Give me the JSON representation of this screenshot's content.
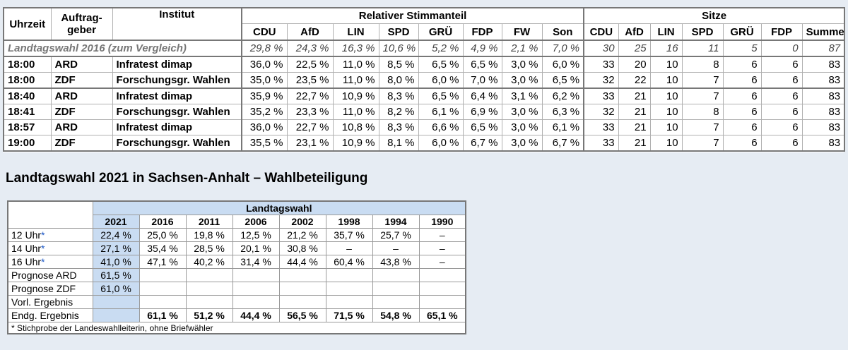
{
  "top_table": {
    "headers": {
      "uhrzeit": "Uhrzeit",
      "auftraggeber_1": "Auftrag-",
      "auftraggeber_2": "geber",
      "institut": "Institut",
      "stimmanteil": "Relativer Stimmanteil",
      "sitze": "Sitze",
      "party_cols": [
        "CDU",
        "AfD",
        "LIN",
        "SPD",
        "GRÜ",
        "FDP",
        "FW",
        "Son"
      ],
      "seat_cols": [
        "CDU",
        "AfD",
        "LIN",
        "SPD",
        "GRÜ",
        "FDP",
        "Summe"
      ]
    },
    "comparison": {
      "label": "Landtagswahl 2016 (zum Vergleich)",
      "shares": [
        "29,8 %",
        "24,3 %",
        "16,3 %",
        "10,6 %",
        "5,2 %",
        "4,9 %",
        "2,1 %",
        "7,0 %"
      ],
      "seats": [
        "30",
        "25",
        "16",
        "11",
        "5",
        "0",
        "87"
      ]
    },
    "rows": [
      {
        "time": "18:00",
        "auftrag": "ARD",
        "institut": "Infratest dimap",
        "shares": [
          "36,0 %",
          "22,5 %",
          "11,0 %",
          "8,5 %",
          "6,5 %",
          "6,5 %",
          "3,0 %",
          "6,0 %"
        ],
        "seats": [
          "33",
          "20",
          "10",
          "8",
          "6",
          "6",
          "83"
        ]
      },
      {
        "time": "18:00",
        "auftrag": "ZDF",
        "institut": "Forschungsgr. Wahlen",
        "shares": [
          "35,0 %",
          "23,5 %",
          "11,0 %",
          "8,0 %",
          "6,0 %",
          "7,0 %",
          "3,0 %",
          "6,5 %"
        ],
        "seats": [
          "32",
          "22",
          "10",
          "7",
          "6",
          "6",
          "83"
        ]
      },
      {
        "time": "18:40",
        "auftrag": "ARD",
        "institut": "Infratest dimap",
        "shares": [
          "35,9 %",
          "22,7 %",
          "10,9 %",
          "8,3 %",
          "6,5 %",
          "6,4 %",
          "3,1 %",
          "6,2 %"
        ],
        "seats": [
          "33",
          "21",
          "10",
          "7",
          "6",
          "6",
          "83"
        ]
      },
      {
        "time": "18:41",
        "auftrag": "ZDF",
        "institut": "Forschungsgr. Wahlen",
        "shares": [
          "35,2 %",
          "23,3 %",
          "11,0 %",
          "8,2 %",
          "6,1 %",
          "6,9 %",
          "3,0 %",
          "6,3 %"
        ],
        "seats": [
          "32",
          "21",
          "10",
          "8",
          "6",
          "6",
          "83"
        ]
      },
      {
        "time": "18:57",
        "auftrag": "ARD",
        "institut": "Infratest dimap",
        "shares": [
          "36,0 %",
          "22,7 %",
          "10,8 %",
          "8,3 %",
          "6,6 %",
          "6,5 %",
          "3,0 %",
          "6,1 %"
        ],
        "seats": [
          "33",
          "21",
          "10",
          "7",
          "6",
          "6",
          "83"
        ]
      },
      {
        "time": "19:00",
        "auftrag": "ZDF",
        "institut": "Forschungsgr. Wahlen",
        "shares": [
          "35,5 %",
          "23,1 %",
          "10,9 %",
          "8,1 %",
          "6,0 %",
          "6,7 %",
          "3,0 %",
          "6,7 %"
        ],
        "seats": [
          "33",
          "21",
          "10",
          "7",
          "6",
          "6",
          "83"
        ]
      }
    ]
  },
  "section_title": "Landtagswahl 2021 in Sachsen-Anhalt – Wahlbeteiligung",
  "turnout_table": {
    "group_header": "Landtagswahl",
    "years": [
      "2021",
      "2016",
      "2011",
      "2006",
      "2002",
      "1998",
      "1994",
      "1990"
    ],
    "rows": [
      {
        "label": "12 Uhr",
        "asterisk": "*",
        "values": [
          "22,4 %",
          "25,0 %",
          "19,8 %",
          "12,5 %",
          "21,2 %",
          "35,7 %",
          "25,7 %",
          "–"
        ]
      },
      {
        "label": "14 Uhr",
        "asterisk": "*",
        "values": [
          "27,1 %",
          "35,4 %",
          "28,5 %",
          "20,1 %",
          "30,8 %",
          "–",
          "–",
          "–"
        ]
      },
      {
        "label": "16 Uhr",
        "asterisk": "*",
        "values": [
          "41,0 %",
          "47,1 %",
          "40,2 %",
          "31,4 %",
          "44,4 %",
          "60,4 %",
          "43,8 %",
          "–"
        ]
      },
      {
        "label": "Prognose ARD",
        "asterisk": "",
        "values": [
          "61,5 %",
          "",
          "",
          "",
          "",
          "",
          "",
          ""
        ]
      },
      {
        "label": "Prognose ZDF",
        "asterisk": "",
        "values": [
          "61,0 %",
          "",
          "",
          "",
          "",
          "",
          "",
          ""
        ]
      },
      {
        "label": "Vorl. Ergebnis",
        "asterisk": "",
        "values": [
          "",
          "",
          "",
          "",
          "",
          "",
          "",
          ""
        ]
      },
      {
        "label": "Endg. Ergebnis",
        "asterisk": "",
        "values": [
          "",
          "61,1 %",
          "51,2 %",
          "44,4 %",
          "56,5 %",
          "71,5 %",
          "54,8 %",
          "65,1 %"
        ]
      }
    ],
    "footnote": "* Stichprobe der Landeswahlleiterin, ohne Briefwähler"
  },
  "colors": {
    "highlight": "#c9dcf2",
    "background": "#e6ecf3",
    "asterisk": "#1a56c4"
  }
}
